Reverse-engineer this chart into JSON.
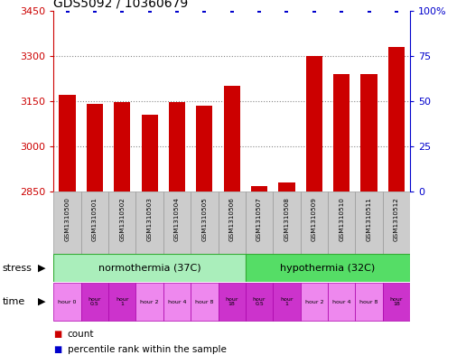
{
  "title": "GDS5092 / 10360679",
  "samples": [
    "GSM1310500",
    "GSM1310501",
    "GSM1310502",
    "GSM1310503",
    "GSM1310504",
    "GSM1310505",
    "GSM1310506",
    "GSM1310507",
    "GSM1310508",
    "GSM1310509",
    "GSM1310510",
    "GSM1310511",
    "GSM1310512"
  ],
  "counts": [
    3170,
    3140,
    3148,
    3105,
    3148,
    3135,
    3200,
    2870,
    2880,
    3300,
    3240,
    3240,
    3330
  ],
  "percentile_ranks": [
    100,
    100,
    100,
    100,
    100,
    100,
    100,
    100,
    100,
    100,
    100,
    100,
    100
  ],
  "ylim": [
    2850,
    3450
  ],
  "yticks": [
    2850,
    3000,
    3150,
    3300,
    3450
  ],
  "right_yticks": [
    0,
    25,
    50,
    75,
    100
  ],
  "right_ylim": [
    0,
    100
  ],
  "bar_color": "#cc0000",
  "dot_color": "#0000cc",
  "bar_width": 0.6,
  "background_color": "#ffffff",
  "stress_labels": [
    "normothermia (37C)",
    "hypothermia (32C)"
  ],
  "stress_color_light": "#aaeebb",
  "stress_color_dark": "#55dd66",
  "stress_counts": [
    7,
    6
  ],
  "time_labels": [
    "hour 0",
    "hour\n0.5",
    "hour\n1",
    "hour 2",
    "hour 4",
    "hour 8",
    "hour\n18",
    "hour\n0.5",
    "hour\n1",
    "hour 2",
    "hour 4",
    "hour 8",
    "hour\n18"
  ],
  "time_color_light": "#ee88ee",
  "time_color_dark": "#cc33cc",
  "time_dark_indices": [
    1,
    2,
    6,
    7,
    8,
    12
  ],
  "dotted_line_color": "#888888",
  "right_axis_color": "#0000cc",
  "left_axis_color": "#cc0000",
  "sample_bg_color": "#cccccc",
  "sample_border_color": "#999999",
  "grid_yticks": [
    3000,
    3150,
    3300
  ]
}
